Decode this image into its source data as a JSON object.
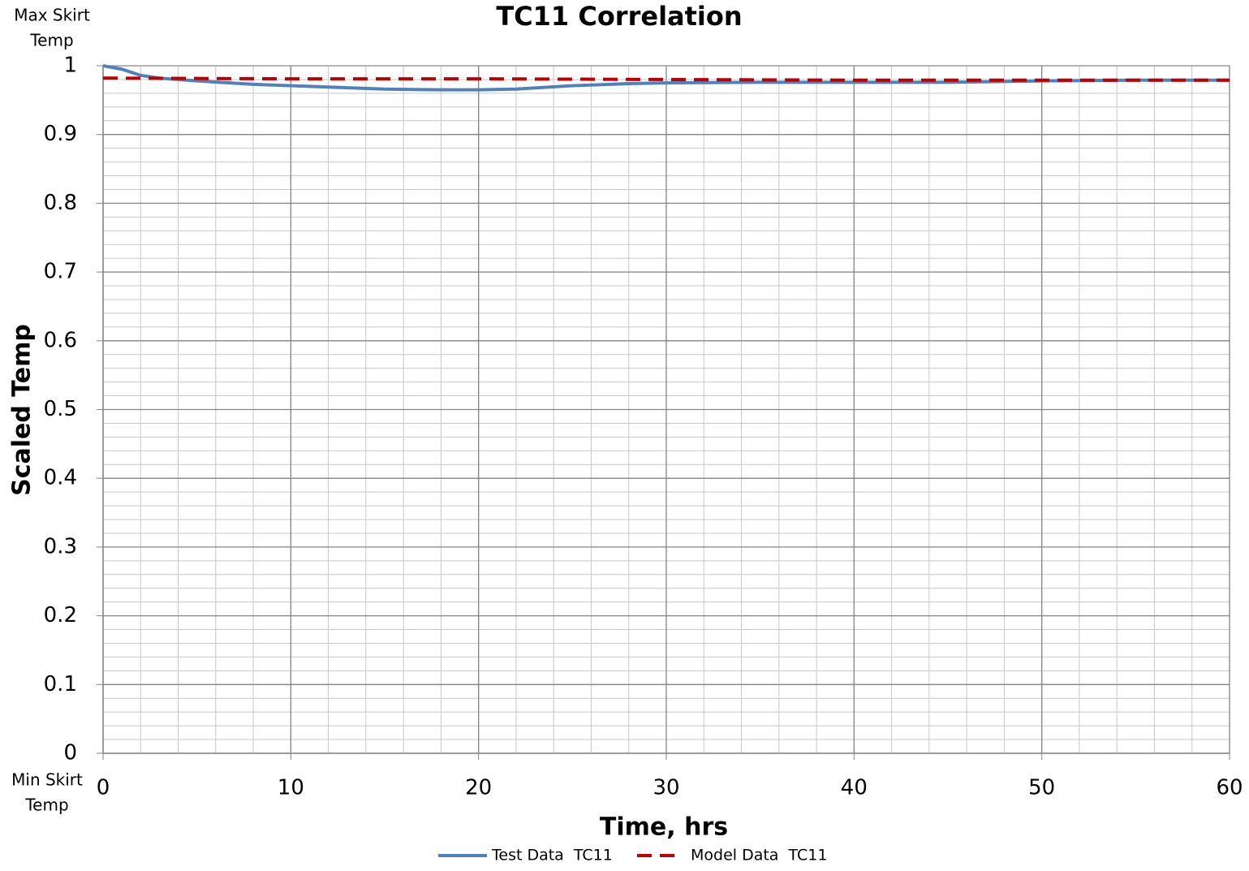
{
  "chart_data": {
    "type": "line",
    "title": "TC11 Correlation",
    "xlabel": "Time, hrs",
    "ylabel": "Scaled Temp",
    "annotations": [
      [
        "Max Skirt",
        "Temp"
      ],
      [
        "Min Skirt",
        "Temp"
      ]
    ],
    "xlim": [
      0,
      60
    ],
    "xticks": [
      0,
      10,
      20,
      30,
      40,
      50,
      60
    ],
    "ylim": [
      0,
      1
    ],
    "yticks": [
      0,
      0.1,
      0.2,
      0.3,
      0.4,
      0.5,
      0.6,
      0.7,
      0.8,
      0.9,
      1
    ],
    "grid": true,
    "minor_grid": {
      "x": 2,
      "y": 0.02
    },
    "legend": "bottom",
    "series": [
      {
        "name": "Test Data  TC11",
        "color": "#4f81bd",
        "dash": false,
        "x": [
          0,
          1,
          2,
          3,
          5,
          8,
          10,
          12,
          15,
          18,
          20,
          22,
          25,
          28,
          30,
          35,
          40,
          45,
          50,
          55,
          60
        ],
        "values": [
          1,
          0.995,
          0.986,
          0.982,
          0.978,
          0.973,
          0.971,
          0.969,
          0.966,
          0.965,
          0.965,
          0.966,
          0.971,
          0.974,
          0.975,
          0.976,
          0.976,
          0.976,
          0.978,
          0.979,
          0.979
        ]
      },
      {
        "name": "Model Data  TC11",
        "color": "#c00000",
        "dash": true,
        "x": [
          0,
          10,
          20,
          30,
          40,
          50,
          60
        ],
        "values": [
          0.982,
          0.981,
          0.981,
          0.98,
          0.979,
          0.979,
          0.979
        ]
      }
    ]
  }
}
